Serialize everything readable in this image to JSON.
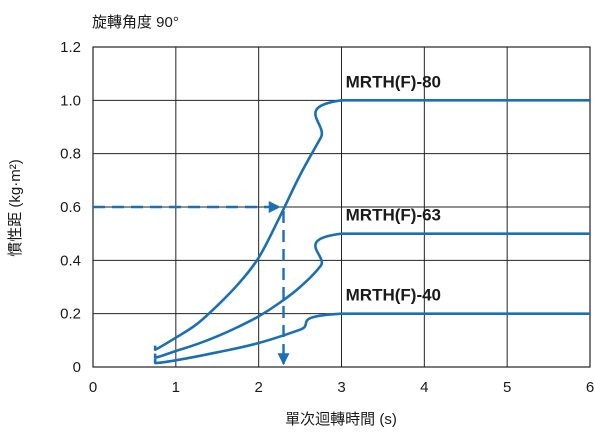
{
  "chart_data": {
    "type": "line",
    "subtitle": "旋轉角度 90°",
    "xlabel": "單次迴轉時間 (s)",
    "ylabel": "慣性距 (kg·m²)",
    "xlim": [
      0,
      6
    ],
    "ylim": [
      0,
      1.2
    ],
    "x_ticks": [
      0,
      1,
      2,
      3,
      4,
      5,
      6
    ],
    "y_ticks": [
      0,
      0.2,
      0.4,
      0.6,
      0.8,
      1.0,
      1.2
    ],
    "x_tick_labels": [
      "0",
      "1",
      "2",
      "3",
      "4",
      "5",
      "6"
    ],
    "y_tick_labels": [
      "0",
      "0.2",
      "0.4",
      "0.6",
      "0.8",
      "1.0",
      "1.2"
    ],
    "grid": true,
    "line_color": "#1a6fb5",
    "series": [
      {
        "name": "MRTH(F)-80",
        "x": [
          0.75,
          0.75,
          1.0,
          1.25,
          1.5,
          1.75,
          2.0,
          2.25,
          2.5,
          2.75,
          3.0,
          6.0
        ],
        "y": [
          0.08,
          0.065,
          0.11,
          0.16,
          0.23,
          0.31,
          0.41,
          0.56,
          0.72,
          0.86,
          1.0,
          1.0
        ]
      },
      {
        "name": "MRTH(F)-63",
        "x": [
          0.75,
          0.75,
          1.0,
          1.25,
          1.5,
          1.75,
          2.0,
          2.25,
          2.5,
          2.75,
          3.0,
          6.0
        ],
        "y": [
          0.05,
          0.035,
          0.06,
          0.085,
          0.115,
          0.15,
          0.19,
          0.24,
          0.3,
          0.38,
          0.5,
          0.5
        ]
      },
      {
        "name": "MRTH(F)-40",
        "x": [
          0.75,
          0.75,
          1.0,
          1.5,
          2.0,
          2.5,
          3.0,
          6.0
        ],
        "y": [
          0.03,
          0.015,
          0.025,
          0.055,
          0.09,
          0.14,
          0.2,
          0.2
        ]
      }
    ],
    "example_reading": {
      "inertia": 0.6,
      "time": 2.3
    }
  }
}
